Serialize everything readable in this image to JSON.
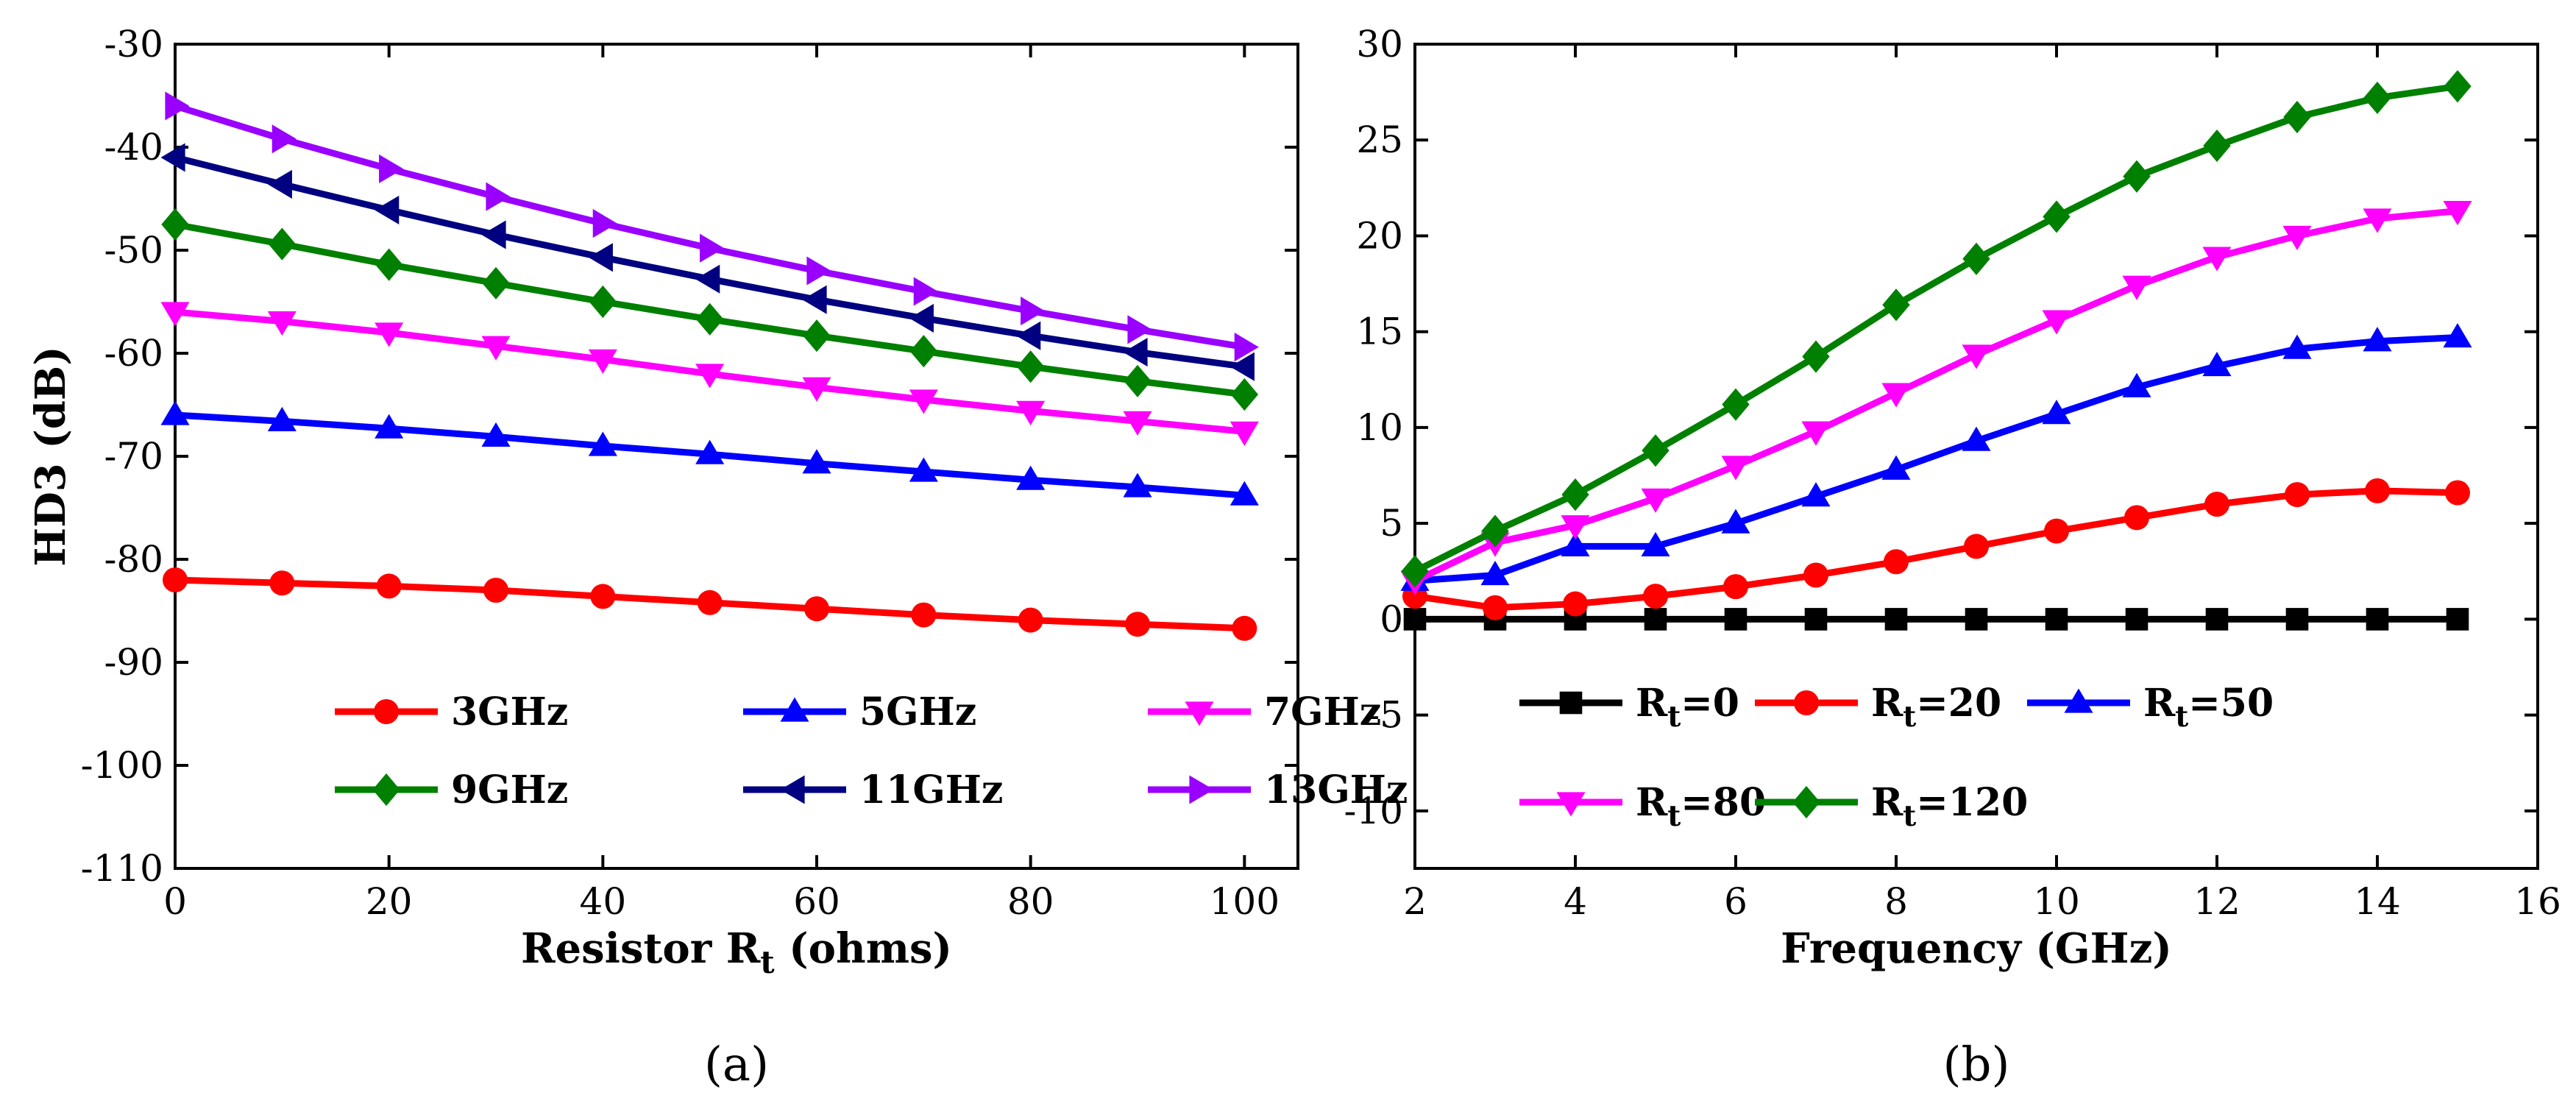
{
  "chart_data": [
    {
      "id": "a",
      "type": "line",
      "caption": "(a)",
      "xlabel": "Resistor R",
      "xlabel_sub": "t",
      "xlabel_suffix": " (ohms)",
      "ylabel": "HD3 (dB)",
      "xlim": [
        0,
        105
      ],
      "ylim": [
        -110,
        -30
      ],
      "xticks": [
        0,
        20,
        40,
        60,
        80,
        100
      ],
      "yticks": [
        -110,
        -100,
        -90,
        -80,
        -70,
        -60,
        -50,
        -40,
        -30
      ],
      "legend_position": "bottom-center",
      "x": [
        0,
        10,
        20,
        30,
        40,
        50,
        60,
        70,
        80,
        90,
        100
      ],
      "series": [
        {
          "name": "3GHz",
          "color": "#ff0000",
          "marker": "circle",
          "values": [
            -82.0,
            -82.3,
            -82.6,
            -83.0,
            -83.6,
            -84.2,
            -84.8,
            -85.4,
            -85.9,
            -86.3,
            -86.7
          ]
        },
        {
          "name": "5GHz",
          "color": "#0000ff",
          "marker": "triangle-up",
          "values": [
            -66.0,
            -66.6,
            -67.3,
            -68.1,
            -69.0,
            -69.8,
            -70.7,
            -71.5,
            -72.3,
            -73.0,
            -73.8
          ]
        },
        {
          "name": "7GHz",
          "color": "#ff00ff",
          "marker": "triangle-down",
          "values": [
            -56.0,
            -56.9,
            -58.0,
            -59.3,
            -60.6,
            -62.0,
            -63.3,
            -64.5,
            -65.6,
            -66.6,
            -67.6
          ]
        },
        {
          "name": "9GHz",
          "color": "#008000",
          "marker": "diamond",
          "values": [
            -47.5,
            -49.4,
            -51.4,
            -53.2,
            -55.0,
            -56.7,
            -58.3,
            -59.8,
            -61.3,
            -62.7,
            -64.0
          ]
        },
        {
          "name": "11GHz",
          "color": "#000080",
          "marker": "triangle-left",
          "values": [
            -41.0,
            -43.6,
            -46.1,
            -48.5,
            -50.7,
            -52.8,
            -54.8,
            -56.6,
            -58.3,
            -59.9,
            -61.3
          ]
        },
        {
          "name": "13GHz",
          "color": "#9900ff",
          "marker": "triangle-right",
          "values": [
            -36.0,
            -39.2,
            -42.1,
            -44.8,
            -47.4,
            -49.8,
            -52.0,
            -54.0,
            -55.9,
            -57.7,
            -59.4
          ]
        }
      ]
    },
    {
      "id": "b",
      "type": "line",
      "caption": "(b)",
      "xlabel": "Frequency (GHz)",
      "ylabel": "",
      "xlim": [
        2,
        16
      ],
      "ylim": [
        -13,
        30
      ],
      "xticks": [
        2,
        4,
        6,
        8,
        10,
        12,
        14,
        16
      ],
      "yticks": [
        -10,
        -5,
        0,
        5,
        10,
        15,
        20,
        25,
        30
      ],
      "legend_position": "bottom-left",
      "x": [
        2,
        3,
        4,
        5,
        6,
        7,
        8,
        9,
        10,
        11,
        12,
        13,
        14,
        15
      ],
      "series": [
        {
          "name": "R",
          "sub": "t",
          "suffix": "=0",
          "color": "#000000",
          "marker": "square",
          "values": [
            0,
            0,
            0,
            0,
            0,
            0,
            0,
            0,
            0,
            0,
            0,
            0,
            0,
            0
          ]
        },
        {
          "name": "R",
          "sub": "t",
          "suffix": "=20",
          "color": "#ff0000",
          "marker": "circle",
          "values": [
            1.2,
            0.6,
            0.8,
            1.2,
            1.7,
            2.3,
            3.0,
            3.8,
            4.6,
            5.3,
            6.0,
            6.5,
            6.7,
            6.6
          ]
        },
        {
          "name": "R",
          "sub": "t",
          "suffix": "=50",
          "color": "#0000ff",
          "marker": "triangle-up",
          "values": [
            2.0,
            2.3,
            3.8,
            3.8,
            5.0,
            6.4,
            7.8,
            9.3,
            10.7,
            12.1,
            13.2,
            14.1,
            14.5,
            14.7
          ]
        },
        {
          "name": "R",
          "sub": "t",
          "suffix": "=80",
          "color": "#ff00ff",
          "marker": "triangle-down",
          "values": [
            2.0,
            4.0,
            4.9,
            6.3,
            8.0,
            9.8,
            11.8,
            13.8,
            15.6,
            17.4,
            18.9,
            20.0,
            20.9,
            21.3
          ]
        },
        {
          "name": "R",
          "sub": "t",
          "suffix": "=120",
          "color": "#008000",
          "marker": "diamond",
          "values": [
            2.5,
            4.6,
            6.5,
            8.8,
            11.2,
            13.7,
            16.4,
            18.8,
            21.0,
            23.1,
            24.7,
            26.2,
            27.2,
            27.8
          ]
        }
      ]
    }
  ]
}
